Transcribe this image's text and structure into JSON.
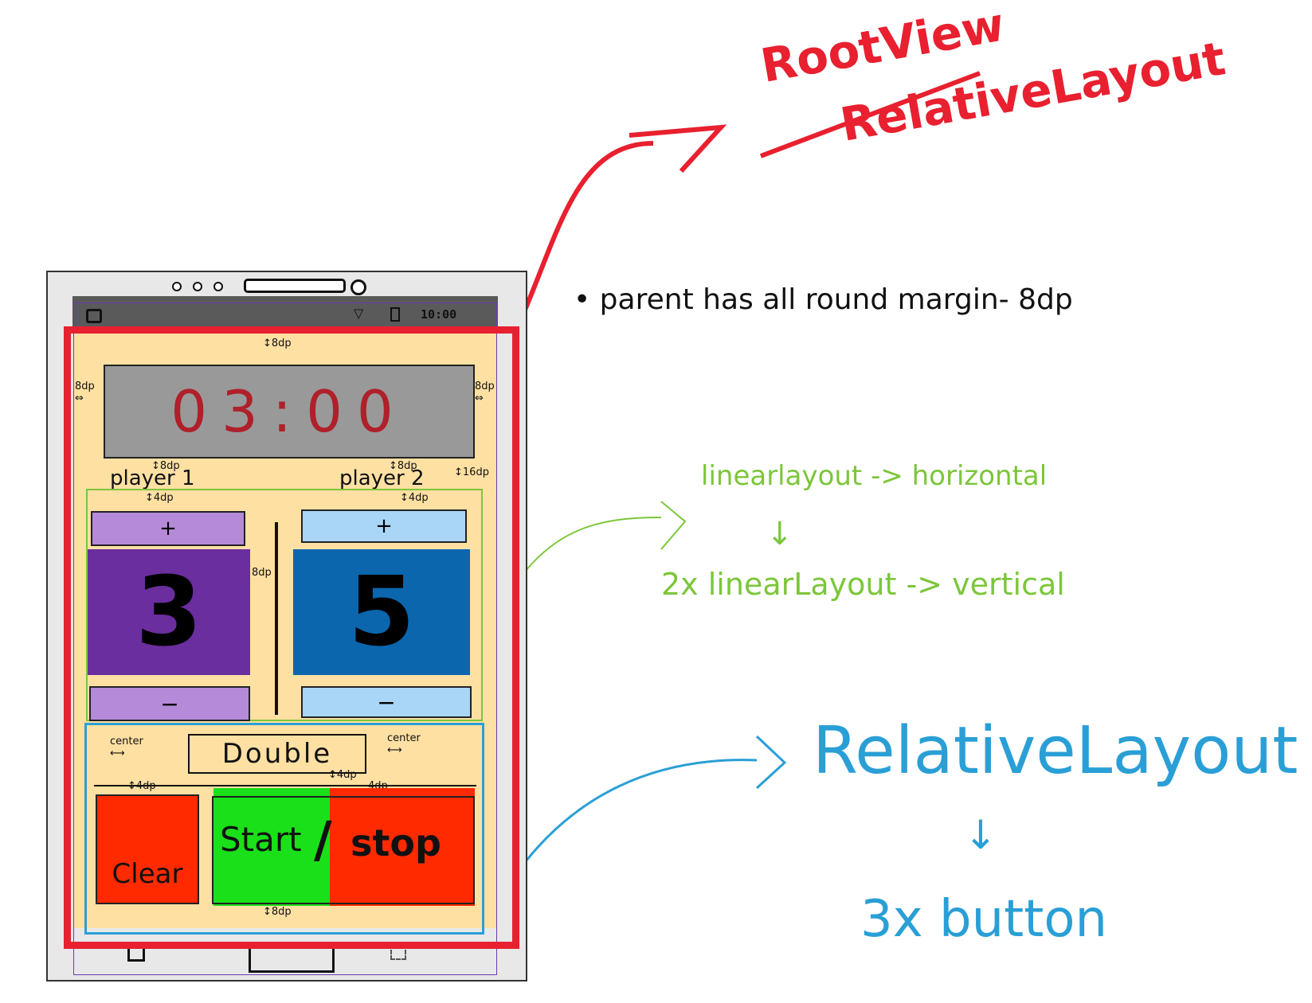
{
  "annotations": {
    "root_title": "RootView",
    "root_subtitle": "RelativeLayout",
    "margin_note": "• parent has all round margin- 8dp",
    "linear_horizontal": "linearlayout -> horizontal",
    "linear_vertical": "2x linearLayout -> vertical",
    "relative_title": "RelativeLayout",
    "button_count": "3x button",
    "arrow_down": "↓",
    "margin_8dp": "8dp",
    "margin_4dp": "4dp",
    "margin_16dp": "16dp",
    "center": "center"
  },
  "status_bar": {
    "time": "10:00"
  },
  "timer": {
    "value": "03:00"
  },
  "players": [
    {
      "name": "player 1",
      "score": "3",
      "plus": "+",
      "minus": "−"
    },
    {
      "name": "player 2",
      "score": "5",
      "plus": "+",
      "minus": "−"
    }
  ],
  "controls": {
    "double": "Double",
    "clear": "Clear",
    "start": "Start",
    "slash": "/",
    "stop": "stop"
  },
  "colors": {
    "root_outline": "#e8202f",
    "linear_outline": "#7cc63a",
    "relative_outline": "#2a9fd6",
    "background": "#ffe0a3",
    "player1": "#6a2e9e",
    "player2": "#0b66ad",
    "start": "#1ae01a",
    "stop_clear": "#ff2a00"
  }
}
